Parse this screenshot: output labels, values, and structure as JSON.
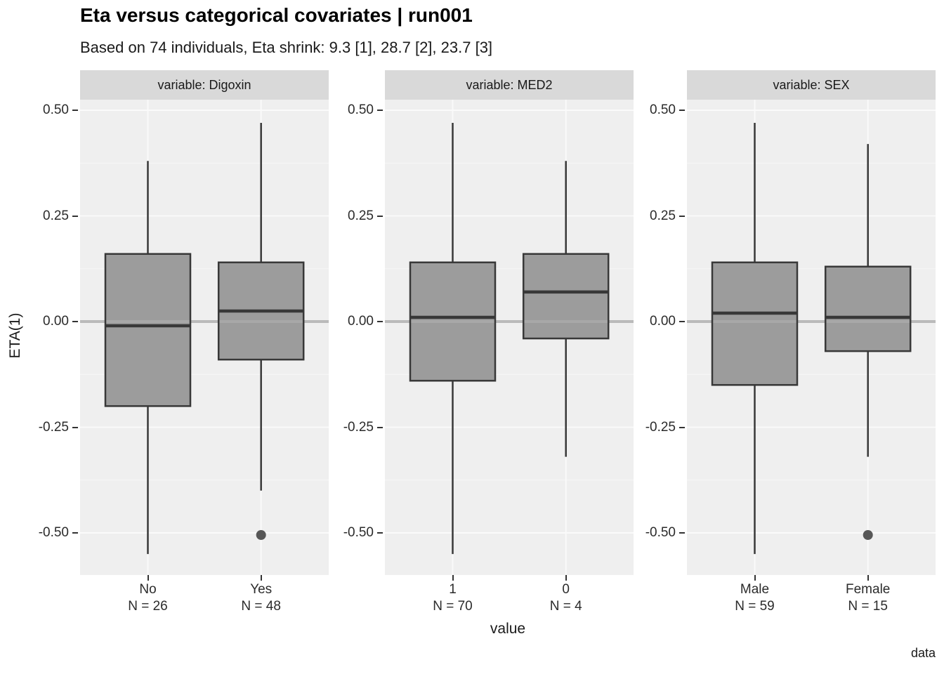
{
  "title": "Eta versus categorical covariates | run001",
  "subtitle": "Based on 74 individuals, Eta shrink: 9.3 [1], 28.7 [2], 23.7 [3]",
  "caption": "data",
  "axes": {
    "x_label": "value",
    "y_label": "ETA(1)",
    "y_ticks": [
      "0.50",
      "0.25",
      "0.00",
      "-0.25",
      "-0.50"
    ],
    "y_tick_values": [
      0.5,
      0.25,
      0.0,
      -0.25,
      -0.5
    ],
    "y_minor_values": [
      0.375,
      0.125,
      -0.125,
      -0.375
    ],
    "ylim": [
      -0.6,
      0.525
    ]
  },
  "colors": {
    "strip_bg": "#D9D9D9",
    "panel_bg": "#EFEFEF",
    "grid_major": "#FAFAFA",
    "grid_minor": "#F7F7F7",
    "box_fill": "#979797",
    "box_stroke": "#383838",
    "reference_line": "#ABABAB",
    "outlier": "#575757"
  },
  "chart_data": {
    "type": "boxplot",
    "title": "Eta versus categorical covariates | run001",
    "subtitle": "Based on 74 individuals, Eta shrink: 9.3 [1], 28.7 [2], 23.7 [3]",
    "xlabel": "value",
    "ylabel": "ETA(1)",
    "ylim": [
      -0.6,
      0.525
    ],
    "grid": true,
    "reference_line_y": 0,
    "facets": [
      {
        "strip": "variable: Digoxin",
        "categories": [
          {
            "label": "No",
            "n_label": "N = 26",
            "stats": {
              "min": -0.55,
              "q1": -0.2,
              "median": -0.01,
              "q3": 0.16,
              "max": 0.38
            },
            "outliers": []
          },
          {
            "label": "Yes",
            "n_label": "N = 48",
            "stats": {
              "min": -0.4,
              "q1": -0.09,
              "median": 0.025,
              "q3": 0.14,
              "max": 0.47
            },
            "outliers": [
              -0.505
            ]
          }
        ]
      },
      {
        "strip": "variable: MED2",
        "categories": [
          {
            "label": "1",
            "n_label": "N = 70",
            "stats": {
              "min": -0.55,
              "q1": -0.14,
              "median": 0.01,
              "q3": 0.14,
              "max": 0.47
            },
            "outliers": []
          },
          {
            "label": "0",
            "n_label": "N = 4",
            "stats": {
              "min": -0.32,
              "q1": -0.04,
              "median": 0.07,
              "q3": 0.16,
              "max": 0.38
            },
            "outliers": []
          }
        ]
      },
      {
        "strip": "variable: SEX",
        "categories": [
          {
            "label": "Male",
            "n_label": "N = 59",
            "stats": {
              "min": -0.55,
              "q1": -0.15,
              "median": 0.02,
              "q3": 0.14,
              "max": 0.47
            },
            "outliers": []
          },
          {
            "label": "Female",
            "n_label": "N = 15",
            "stats": {
              "min": -0.32,
              "q1": -0.07,
              "median": 0.01,
              "q3": 0.13,
              "max": 0.42
            },
            "outliers": [
              -0.505
            ]
          }
        ]
      }
    ]
  }
}
